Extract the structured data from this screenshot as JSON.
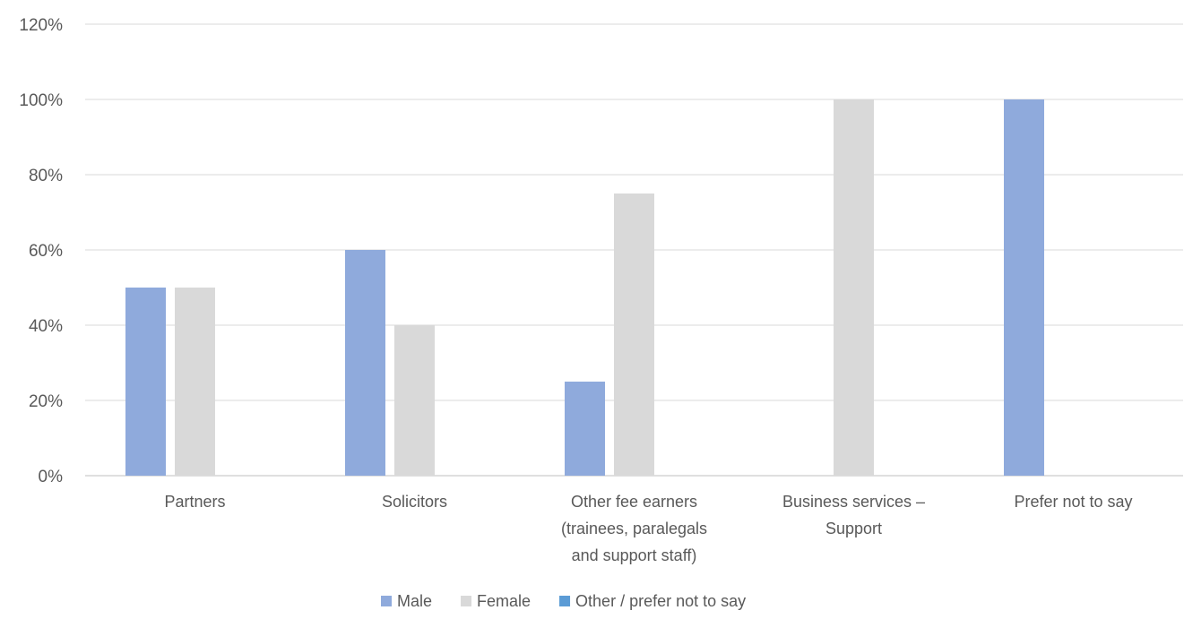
{
  "chart_data": {
    "type": "bar",
    "title": "",
    "xlabel": "",
    "ylabel": "",
    "ylim": [
      0,
      120
    ],
    "y_ticks": [
      0,
      20,
      40,
      60,
      80,
      100,
      120
    ],
    "y_tick_format": "percent",
    "grid": "horizontal",
    "legend_position": "bottom",
    "categories": [
      [
        "Partners"
      ],
      [
        "Solicitors"
      ],
      [
        "Other fee earners",
        "(trainees, paralegals",
        "and support staff)"
      ],
      [
        "Business services –",
        "Support"
      ],
      [
        "Prefer not to say"
      ]
    ],
    "series": [
      {
        "name": "Male",
        "color": "#8faadc",
        "values": [
          50,
          60,
          25,
          0,
          100
        ]
      },
      {
        "name": "Female",
        "color": "#d9d9d9",
        "values": [
          50,
          40,
          75,
          100,
          0
        ]
      },
      {
        "name": "Other / prefer not to say",
        "color": "#5b9bd5",
        "values": [
          0,
          0,
          0,
          0,
          0
        ]
      }
    ]
  }
}
